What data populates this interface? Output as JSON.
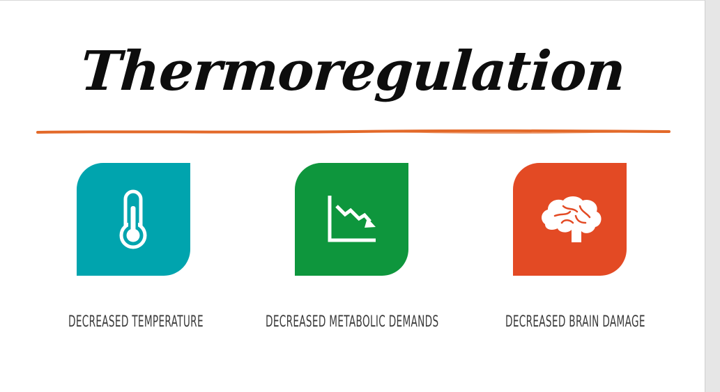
{
  "slide": {
    "title": "Thermoregulation",
    "rule_color": "#e36a2a",
    "cards": [
      {
        "label": "DECREASED TEMPERATURE",
        "color": "#00a4ae",
        "icon": "thermometer-icon"
      },
      {
        "label": "DECREASED METABOLIC DEMANDS",
        "color": "#0e963d",
        "icon": "declining-chart-icon"
      },
      {
        "label": "DECREASED BRAIN DAMAGE",
        "color": "#e34a24",
        "icon": "brain-icon"
      }
    ]
  }
}
